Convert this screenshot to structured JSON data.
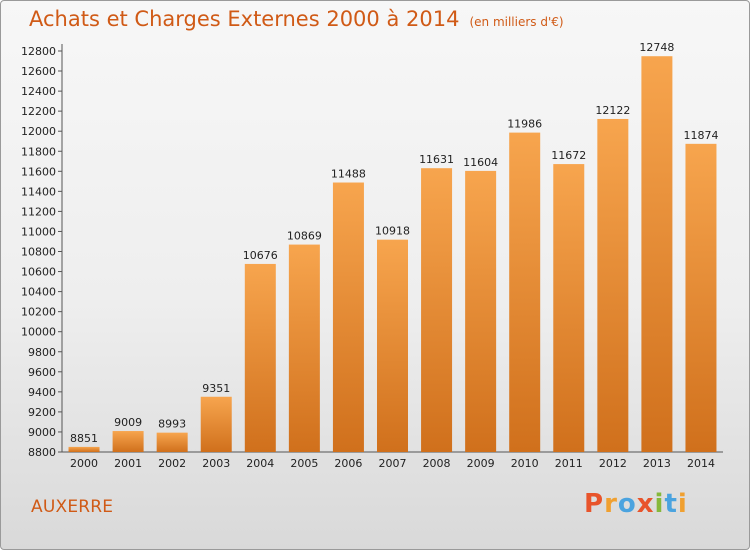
{
  "header": {
    "title": "Achats et Charges Externes 2000 à 2014",
    "unit": "(en milliers d'€)"
  },
  "footer": {
    "city": "AUXERRE",
    "logo": "Proxiti"
  },
  "colors": {
    "bar_light": "#f7a54e",
    "bar_dark": "#d0701c",
    "title": "#d05a16",
    "logo_letters": [
      "#e8542b",
      "#f0a030",
      "#4aa3df",
      "#e8542b",
      "#86b83b",
      "#4aa3df",
      "#f0a030"
    ]
  },
  "chart_data": {
    "type": "bar",
    "title": "Achats et Charges Externes 2000 à 2014",
    "subtitle": "(en milliers d'€)",
    "categories": [
      "2000",
      "2001",
      "2002",
      "2003",
      "2004",
      "2005",
      "2006",
      "2007",
      "2008",
      "2009",
      "2010",
      "2011",
      "2012",
      "2013",
      "2014"
    ],
    "values": [
      8851,
      9009,
      8993,
      9351,
      10676,
      10869,
      11488,
      10918,
      11631,
      11604,
      11986,
      11672,
      12122,
      12748,
      11874
    ],
    "data_labels": [
      "8851",
      "9009",
      "8993",
      "9351",
      "10676",
      "10869",
      "11488",
      "10918",
      "11631",
      "11604",
      "11986",
      "11672",
      "12122",
      "12748",
      "11874"
    ],
    "ylim": [
      8800,
      12800
    ],
    "yticks": [
      "8800",
      "9000",
      "9200",
      "9400",
      "9600",
      "9800",
      "10000",
      "10200",
      "10400",
      "10600",
      "10800",
      "11000",
      "11200",
      "11400",
      "11600",
      "11800",
      "12000",
      "12200",
      "12400",
      "12600",
      "12800"
    ],
    "grid": false,
    "legend": "none"
  }
}
